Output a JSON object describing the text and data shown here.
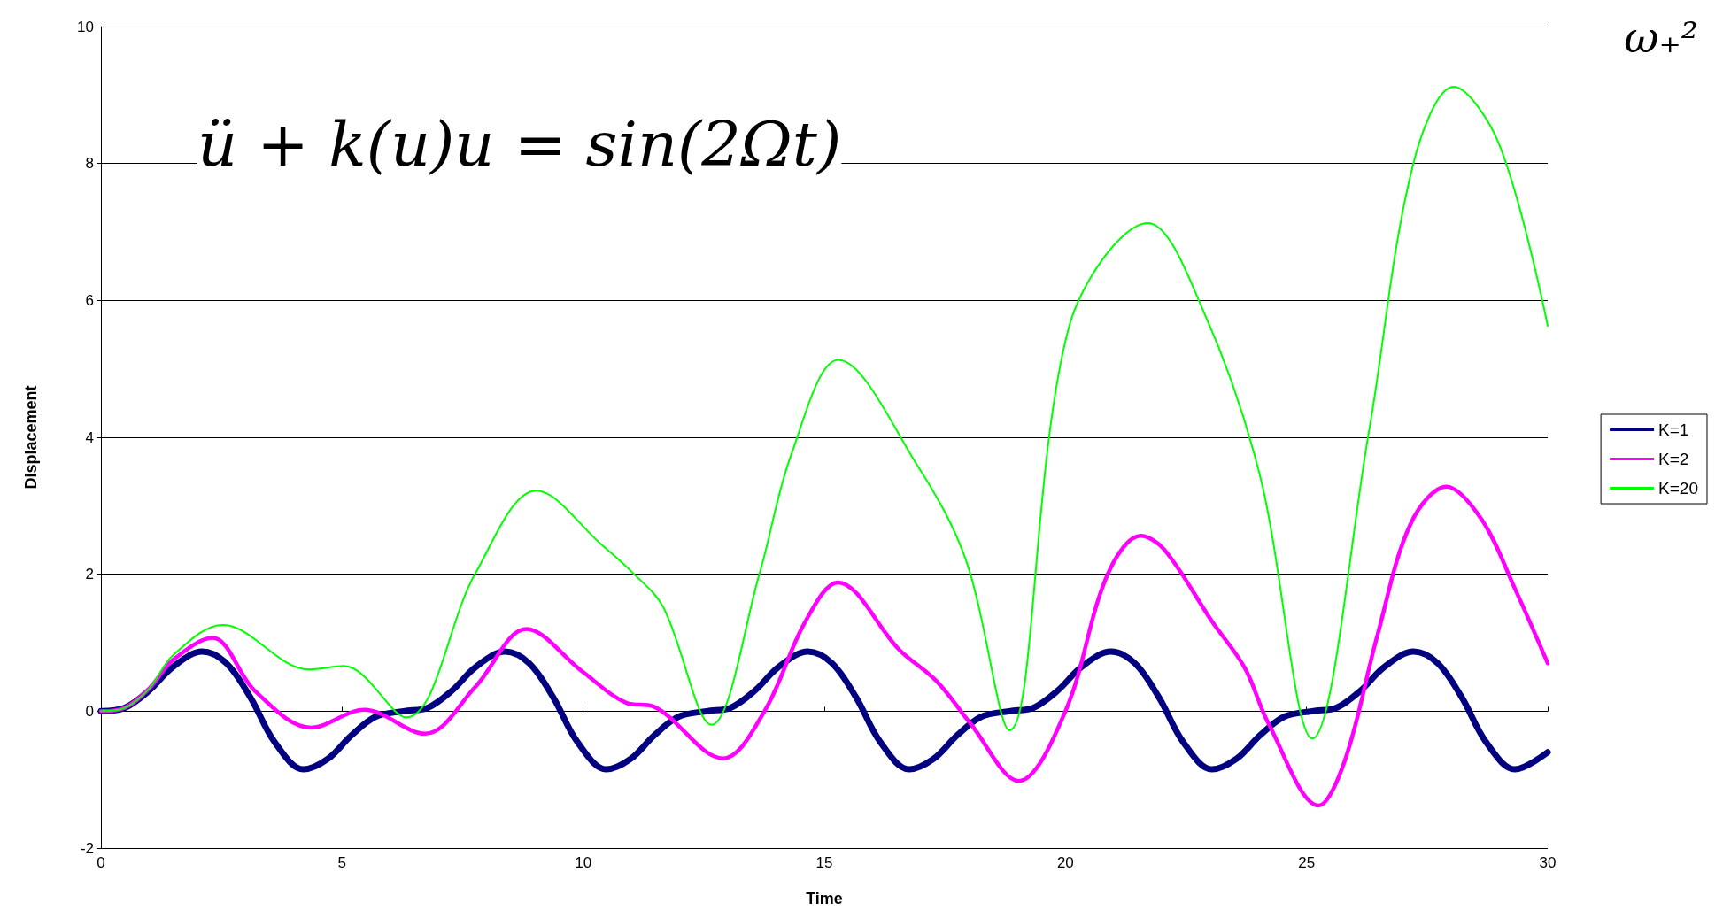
{
  "chart_data": {
    "type": "line",
    "xlabel": "Time",
    "ylabel": "Displacement",
    "annotations": [
      "ü + k(u)u = sin(2Ωt)",
      "ω₊²"
    ],
    "xlim": [
      0,
      30
    ],
    "xticks": [
      0,
      5,
      10,
      15,
      20,
      25,
      30
    ],
    "ylim": [
      -2,
      10
    ],
    "yticks": [
      -2,
      0,
      2,
      4,
      6,
      8,
      10
    ],
    "grid": "y",
    "legend": "right",
    "marker": "none",
    "line_style": "solid",
    "series": [
      {
        "name": "K=1",
        "color": "#000080",
        "x": [
          0,
          0.5,
          1,
          1.5,
          2.1,
          2.6,
          3.1,
          3.6,
          4.2,
          4.7,
          5.2,
          5.7,
          6.28,
          6.78,
          7.28,
          7.78,
          8.38,
          8.88,
          9.38,
          9.88,
          10.48,
          10.98,
          11.48,
          11.98,
          12.56,
          13.06,
          13.56,
          14.06,
          14.66,
          15.16,
          15.66,
          16.16,
          16.76,
          17.26,
          17.76,
          18.26,
          18.84,
          19.34,
          19.84,
          20.34,
          20.94,
          21.44,
          21.94,
          22.44,
          23.04,
          23.54,
          24.04,
          24.54,
          25.12,
          25.62,
          26.12,
          26.62,
          27.22,
          27.72,
          28.22,
          28.72,
          29.32,
          30
        ],
        "values": [
          0,
          0.05,
          0.3,
          0.65,
          0.87,
          0.7,
          0.2,
          -0.45,
          -0.85,
          -0.7,
          -0.35,
          -0.08,
          0,
          0.05,
          0.3,
          0.65,
          0.87,
          0.7,
          0.2,
          -0.45,
          -0.85,
          -0.7,
          -0.35,
          -0.08,
          0,
          0.05,
          0.3,
          0.65,
          0.87,
          0.7,
          0.2,
          -0.45,
          -0.85,
          -0.7,
          -0.35,
          -0.08,
          0,
          0.05,
          0.3,
          0.65,
          0.87,
          0.7,
          0.2,
          -0.45,
          -0.85,
          -0.7,
          -0.35,
          -0.08,
          0,
          0.05,
          0.3,
          0.65,
          0.87,
          0.7,
          0.2,
          -0.45,
          -0.85,
          -0.6
        ]
      },
      {
        "name": "K=2",
        "color": "#ff00ff",
        "x": [
          0,
          0.5,
          1,
          1.5,
          2.31,
          3.2,
          4.36,
          5.46,
          6.72,
          7.77,
          8.82,
          9.98,
          10.9,
          11.45,
          12.9,
          13.76,
          14.6,
          15.28,
          16.55,
          17.34,
          18.03,
          19.03,
          20,
          20.87,
          21.56,
          22.05,
          23.04,
          23.72,
          24.21,
          25.25,
          25.79,
          26.47,
          27.16,
          27.9,
          28.63,
          29.32,
          30
        ],
        "values": [
          0,
          0.05,
          0.33,
          0.75,
          1.07,
          0.29,
          -0.24,
          0.02,
          -0.33,
          0.36,
          1.2,
          0.58,
          0.12,
          0.07,
          -0.69,
          0,
          1.3,
          1.88,
          0.9,
          0.43,
          -0.18,
          -1.02,
          0,
          1.99,
          2.56,
          2.36,
          1.31,
          0.63,
          -0.18,
          -1.38,
          -0.73,
          1.11,
          2.74,
          3.28,
          2.8,
          1.79,
          0.7
        ]
      },
      {
        "name": "K=20",
        "color": "#00ff00",
        "x": [
          0,
          0.5,
          1,
          1.5,
          2.52,
          4.31,
          5.04,
          6.33,
          7.77,
          9.03,
          10.4,
          11.03,
          11.66,
          12.66,
          13.66,
          14.32,
          15.29,
          16.92,
          17.94,
          18.84,
          20.08,
          21.71,
          22.9,
          24.03,
          25.12,
          26.29,
          27.2,
          28.05,
          29.0,
          30
        ],
        "values": [
          0,
          0.05,
          0.33,
          0.82,
          1.26,
          0.61,
          0.66,
          -0.09,
          2.02,
          3.22,
          2.42,
          2.02,
          1.52,
          -0.2,
          2.02,
          3.76,
          5.13,
          3.6,
          2.2,
          -0.28,
          5.63,
          7.13,
          5.78,
          3.45,
          -0.4,
          4.07,
          7.96,
          9.12,
          8.27,
          5.63
        ]
      }
    ]
  }
}
